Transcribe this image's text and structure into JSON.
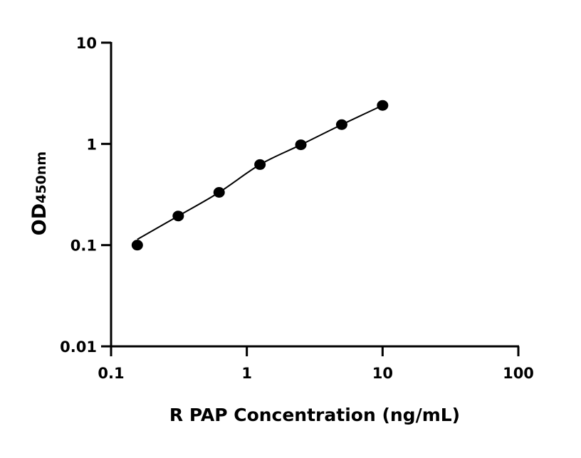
{
  "chart_data": {
    "type": "scatter",
    "title": "",
    "xlabel": "R PAP Concentration (ng/mL)",
    "ylabel_main": "OD",
    "ylabel_sub": "450nm",
    "x_scale": "log",
    "y_scale": "log",
    "xlim": [
      0.1,
      100
    ],
    "ylim": [
      0.01,
      10
    ],
    "x_ticks": [
      0.1,
      1,
      10,
      100
    ],
    "x_tick_labels": [
      "0.1",
      "1",
      "10",
      "100"
    ],
    "y_ticks": [
      0.01,
      0.1,
      1,
      10
    ],
    "y_tick_labels": [
      "0.01",
      "0.1",
      "1",
      "10"
    ],
    "grid": false,
    "series": [
      {
        "x": [
          0.156,
          0.3125,
          0.625,
          1.25,
          2.5,
          5,
          10
        ],
        "y": [
          0.1,
          0.194,
          0.332,
          0.625,
          0.98,
          1.55,
          2.4
        ],
        "marker": "circle",
        "fit_line": true,
        "color": "#000000"
      }
    ]
  }
}
